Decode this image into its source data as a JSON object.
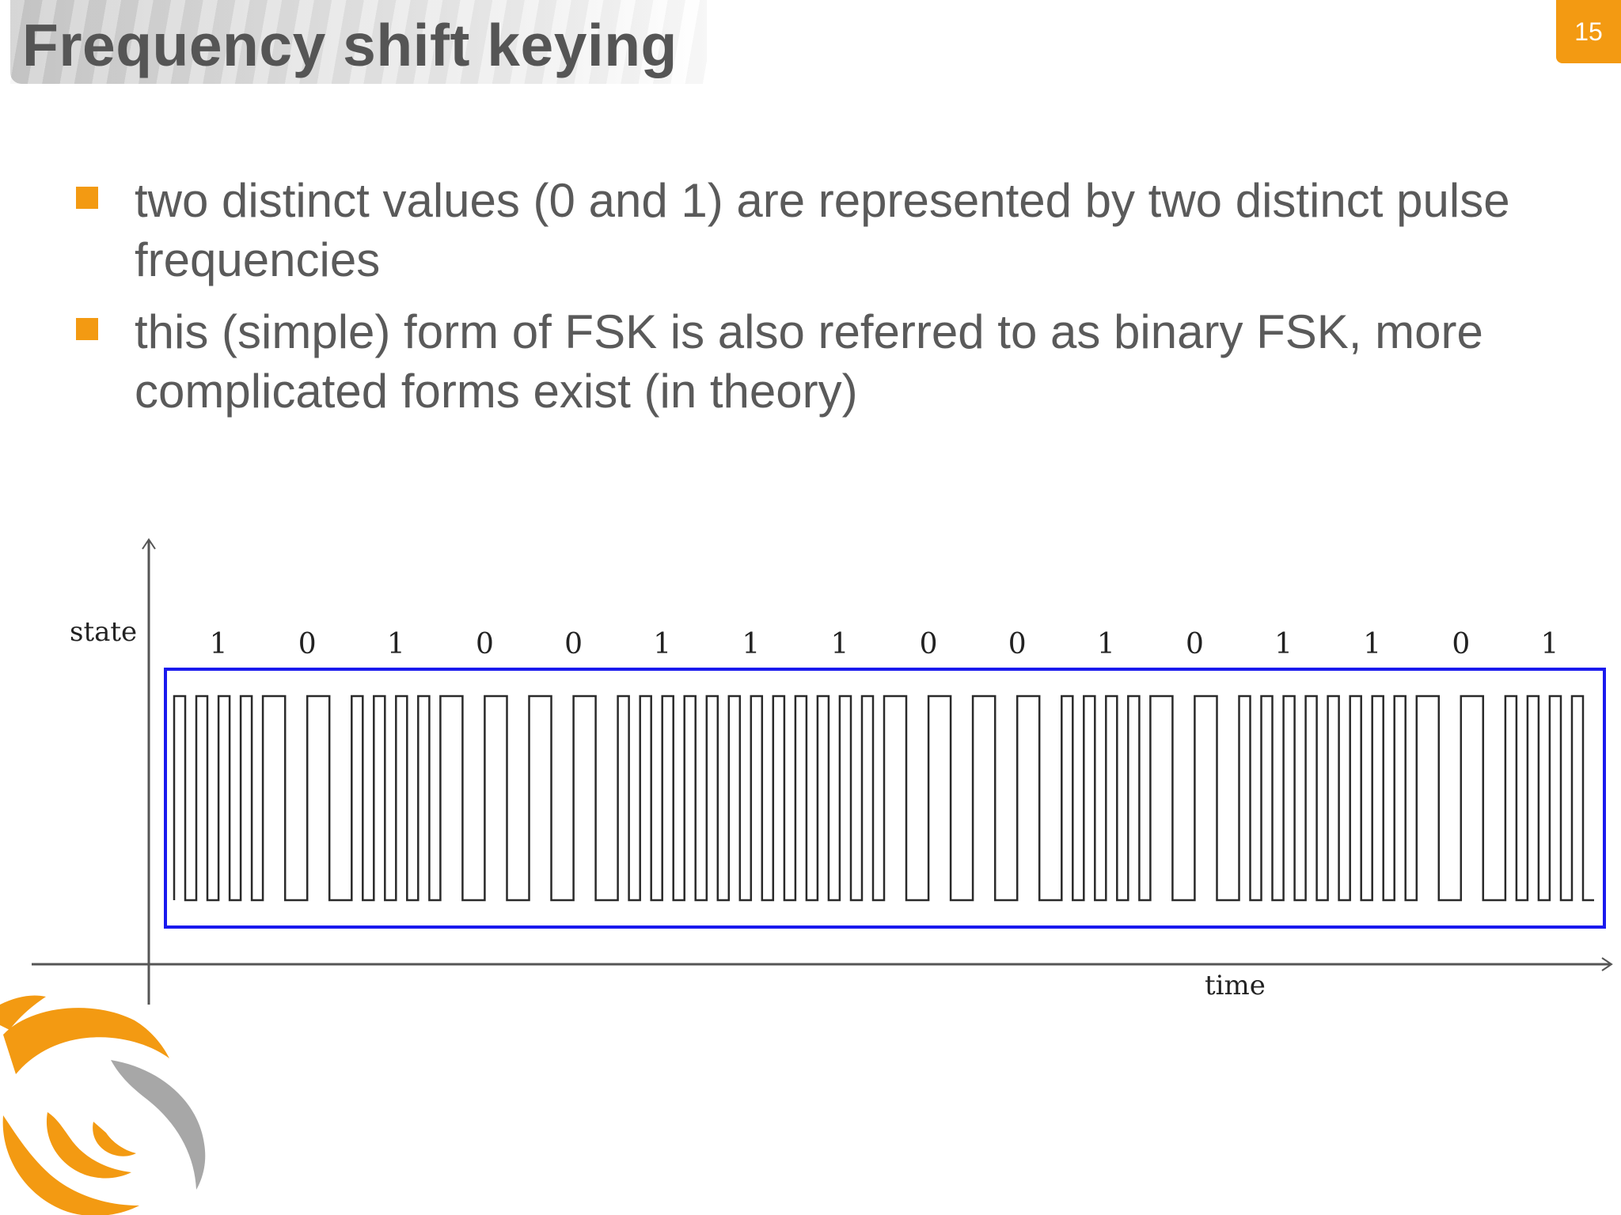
{
  "slide": {
    "title": "Frequency shift keying",
    "number": "15"
  },
  "bullets": [
    {
      "text": "two distinct values (0 and 1) are represented by two distinct pulse frequencies"
    },
    {
      "text": "this (simple) form of FSK is also referred to as binary FSK, more complicated forms exist (in theory)"
    }
  ],
  "diagram": {
    "ylabel": "state",
    "xlabel": "time",
    "bits": [
      "1",
      "0",
      "1",
      "0",
      "0",
      "1",
      "1",
      "1",
      "0",
      "0",
      "1",
      "0",
      "1",
      "1",
      "0",
      "1"
    ],
    "pulses_per_bit": {
      "1": 4,
      "0": 2
    },
    "colors": {
      "frame": "#1a1aee",
      "signal": "#2a2a2a",
      "axis": "#555555",
      "accent": "#f39a12"
    }
  }
}
